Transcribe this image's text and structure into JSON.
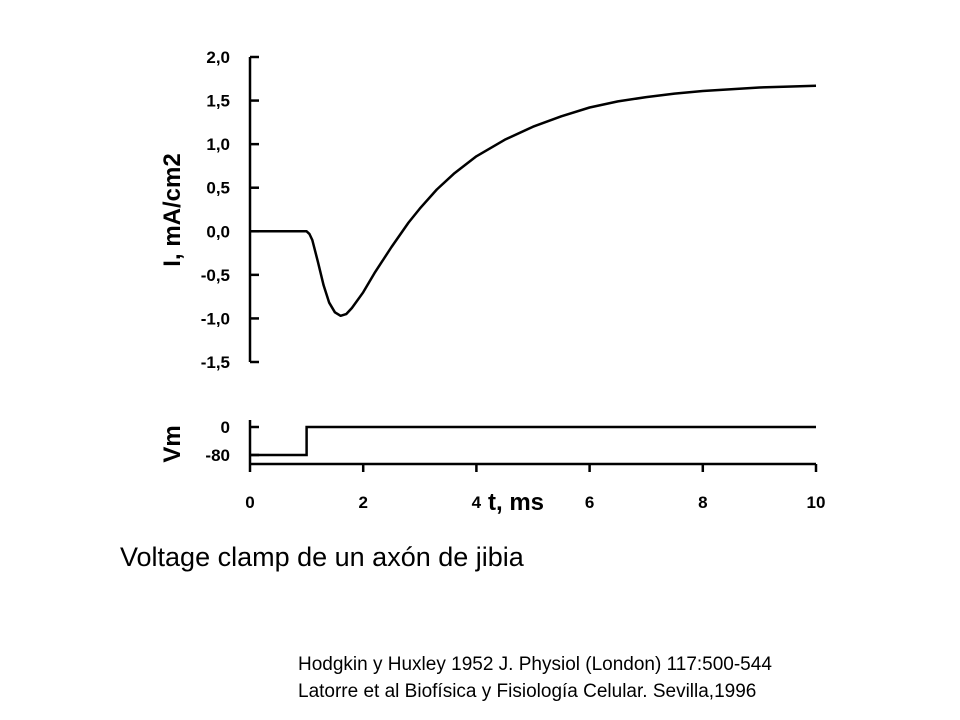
{
  "chart_data": [
    {
      "type": "line",
      "ylabel": "I, mA/cm2",
      "yticks": [
        "2,0",
        "1,5",
        "1,0",
        "0,5",
        "0,0",
        "-0,5",
        "-1,0",
        "-1,5"
      ],
      "ylim": [
        -1.5,
        2.0
      ],
      "xlim": [
        0,
        10
      ],
      "series": [
        {
          "x": [
            0,
            1.0,
            1.05,
            1.1,
            1.2,
            1.3,
            1.4,
            1.5,
            1.6,
            1.7,
            1.8,
            2.0,
            2.2,
            2.5,
            2.8,
            3.0,
            3.3,
            3.6,
            4.0,
            4.5,
            5.0,
            5.5,
            6.0,
            6.5,
            7.0,
            7.5,
            8.0,
            8.5,
            9.0,
            9.5,
            10.0
          ],
          "y": [
            0,
            0,
            -0.03,
            -0.1,
            -0.35,
            -0.62,
            -0.82,
            -0.93,
            -0.97,
            -0.95,
            -0.88,
            -0.7,
            -0.48,
            -0.18,
            0.1,
            0.26,
            0.48,
            0.66,
            0.86,
            1.05,
            1.2,
            1.32,
            1.42,
            1.49,
            1.54,
            1.58,
            1.61,
            1.63,
            1.65,
            1.66,
            1.67
          ]
        }
      ]
    },
    {
      "type": "line",
      "ylabel": "Vm",
      "yticks": [
        "0",
        "-80"
      ],
      "ylim": [
        -80,
        0
      ],
      "xlabel": "t, ms",
      "xticks": [
        "0",
        "2",
        "4",
        "6",
        "8",
        "10"
      ],
      "xlim": [
        0,
        10
      ],
      "series": [
        {
          "x": [
            0,
            1.0,
            1.0,
            10.0
          ],
          "y": [
            -80,
            -80,
            0,
            0
          ]
        }
      ]
    }
  ],
  "caption": "Voltage clamp de un axón de jibia",
  "references": [
    "Hodgkin y Huxley 1952 J. Physiol (London) 117:500-544",
    "Latorre et al Biofísica y Fisiología Celular. Sevilla,1996"
  ]
}
